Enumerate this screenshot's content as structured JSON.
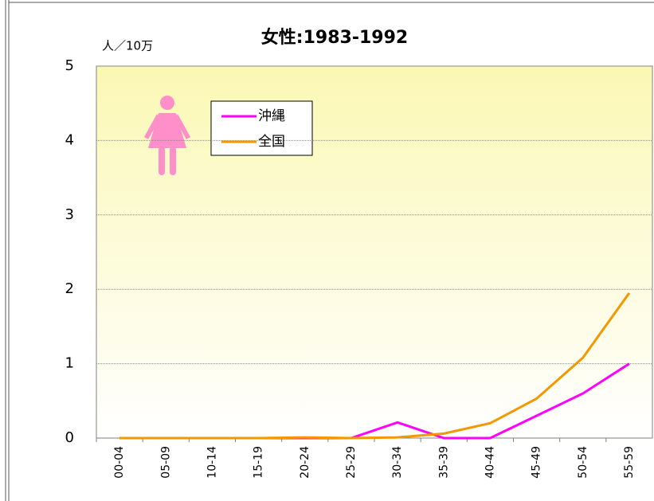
{
  "chart_data": {
    "type": "line",
    "title": "女性:1983-1992",
    "y_unit": "人／10万",
    "categories": [
      "00-04",
      "05-09",
      "10-14",
      "15-19",
      "20-24",
      "25-29",
      "30-34",
      "35-39",
      "40-44",
      "45-49",
      "50-54",
      "55-59"
    ],
    "series": [
      {
        "name": "沖縄",
        "color": "#ff00ff",
        "values": [
          0,
          0,
          0,
          0,
          0,
          0,
          0.21,
          0,
          0,
          0.3,
          0.6,
          1.0
        ]
      },
      {
        "name": "全国",
        "color": "#f39800",
        "values": [
          0,
          0,
          0,
          0,
          0.01,
          0,
          0.01,
          0.06,
          0.2,
          0.53,
          1.08,
          1.95
        ]
      }
    ],
    "ylim": [
      0,
      5
    ],
    "yticks": [
      0,
      1,
      2,
      3,
      4,
      5
    ],
    "grid": true
  }
}
